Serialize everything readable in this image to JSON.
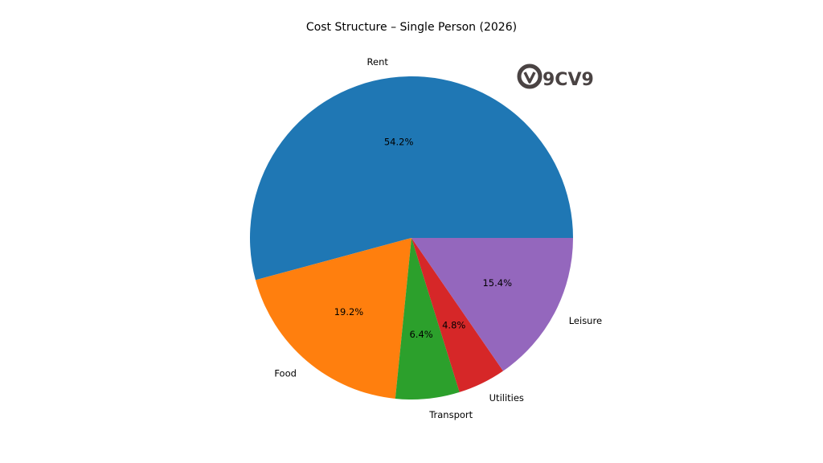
{
  "chart_data": {
    "type": "pie",
    "title": "Cost Structure – Single Person (2026)",
    "start_angle_deg": 0,
    "direction": "counterclockwise",
    "slices": [
      {
        "label": "Rent",
        "value": 54.2,
        "pct_label": "54.2%",
        "color": "#1f77b4"
      },
      {
        "label": "Food",
        "value": 19.2,
        "pct_label": "19.2%",
        "color": "#ff7f0e"
      },
      {
        "label": "Transport",
        "value": 6.4,
        "pct_label": "6.4%",
        "color": "#2ca02c"
      },
      {
        "label": "Utilities",
        "value": 4.8,
        "pct_label": "4.8%",
        "color": "#d62728"
      },
      {
        "label": "Leisure",
        "value": 15.4,
        "pct_label": "15.4%",
        "color": "#9467bd"
      }
    ]
  },
  "watermark": {
    "text": "9CV9",
    "icon": "9cv9-logo-icon",
    "color": "#4a4343"
  }
}
